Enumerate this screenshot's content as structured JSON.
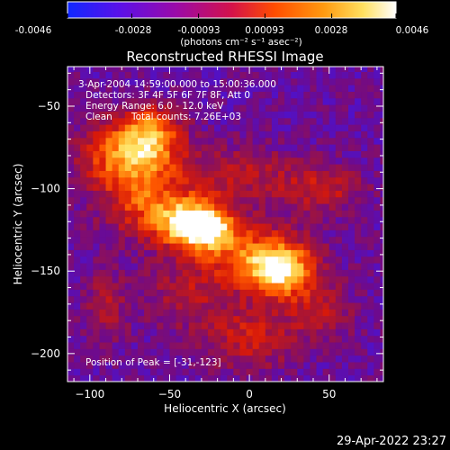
{
  "window": {
    "timestamp": "29-Apr-2022 23:27"
  },
  "colorbar": {
    "tick_labels": [
      "-0.0046",
      "-0.0028",
      "-0.00093",
      "0.00093",
      "0.0028",
      "0.0046"
    ],
    "unit_label": "(photons cm⁻² s⁻¹ asec⁻²)",
    "range": [
      -0.0046,
      0.0046
    ],
    "palette": [
      "#1028ff",
      "#5b10e8",
      "#9a0aa8",
      "#d4124a",
      "#ff4d00",
      "#ff9a10",
      "#ffe060",
      "#ffffff"
    ]
  },
  "chart_data": {
    "type": "heatmap",
    "title": "Reconstructed RHESSI Image",
    "xlabel": "Heliocentric X (arcsec)",
    "ylabel": "Heliocentric Y (arcsec)",
    "xlim": [
      -114,
      84
    ],
    "ylim": [
      -217,
      -26
    ],
    "x_ticks": [
      -100,
      -50,
      0,
      50
    ],
    "y_ticks": [
      -50,
      -100,
      -150,
      -200
    ],
    "info_lines": [
      "3-Apr-2004 14:59:00.000 to 15:00:36.000",
      "Detectors: 3F 4F 5F 6F 7F 8F, Att 0",
      "Energy Range: 6.0 - 12.0 keV",
      "Clean",
      "Total counts: 7.26E+03"
    ],
    "peak_label": "Position of Peak = [-31,-123]",
    "peak": [
      -31,
      -123
    ],
    "sources": [
      {
        "x": -31,
        "y": -123,
        "amp": 1.0,
        "sx": 14,
        "sy": 9
      },
      {
        "x": -55,
        "y": -112,
        "amp": 0.55,
        "sx": 22,
        "sy": 14
      },
      {
        "x": 20,
        "y": -150,
        "amp": 0.75,
        "sx": 14,
        "sy": 11
      },
      {
        "x": 0,
        "y": -140,
        "amp": 0.5,
        "sx": 25,
        "sy": 14
      },
      {
        "x": -80,
        "y": -80,
        "amp": 0.6,
        "sx": 18,
        "sy": 16
      },
      {
        "x": -60,
        "y": -75,
        "amp": 0.45,
        "sx": 14,
        "sy": 12
      },
      {
        "x": -5,
        "y": -90,
        "amp": 0.3,
        "sx": 22,
        "sy": 12
      },
      {
        "x": 45,
        "y": -100,
        "amp": 0.35,
        "sx": 18,
        "sy": 10
      },
      {
        "x": -90,
        "y": -170,
        "amp": 0.25,
        "sx": 10,
        "sy": 16
      },
      {
        "x": 0,
        "y": -190,
        "amp": 0.35,
        "sx": 20,
        "sy": 14
      },
      {
        "x": 45,
        "y": -175,
        "amp": 0.3,
        "sx": 14,
        "sy": 12
      },
      {
        "x": -40,
        "y": -165,
        "amp": 0.25,
        "sx": 18,
        "sy": 14
      },
      {
        "x": -60,
        "y": -60,
        "amp": 0.3,
        "sx": 12,
        "sy": 8
      }
    ],
    "background_level": -0.45
  }
}
